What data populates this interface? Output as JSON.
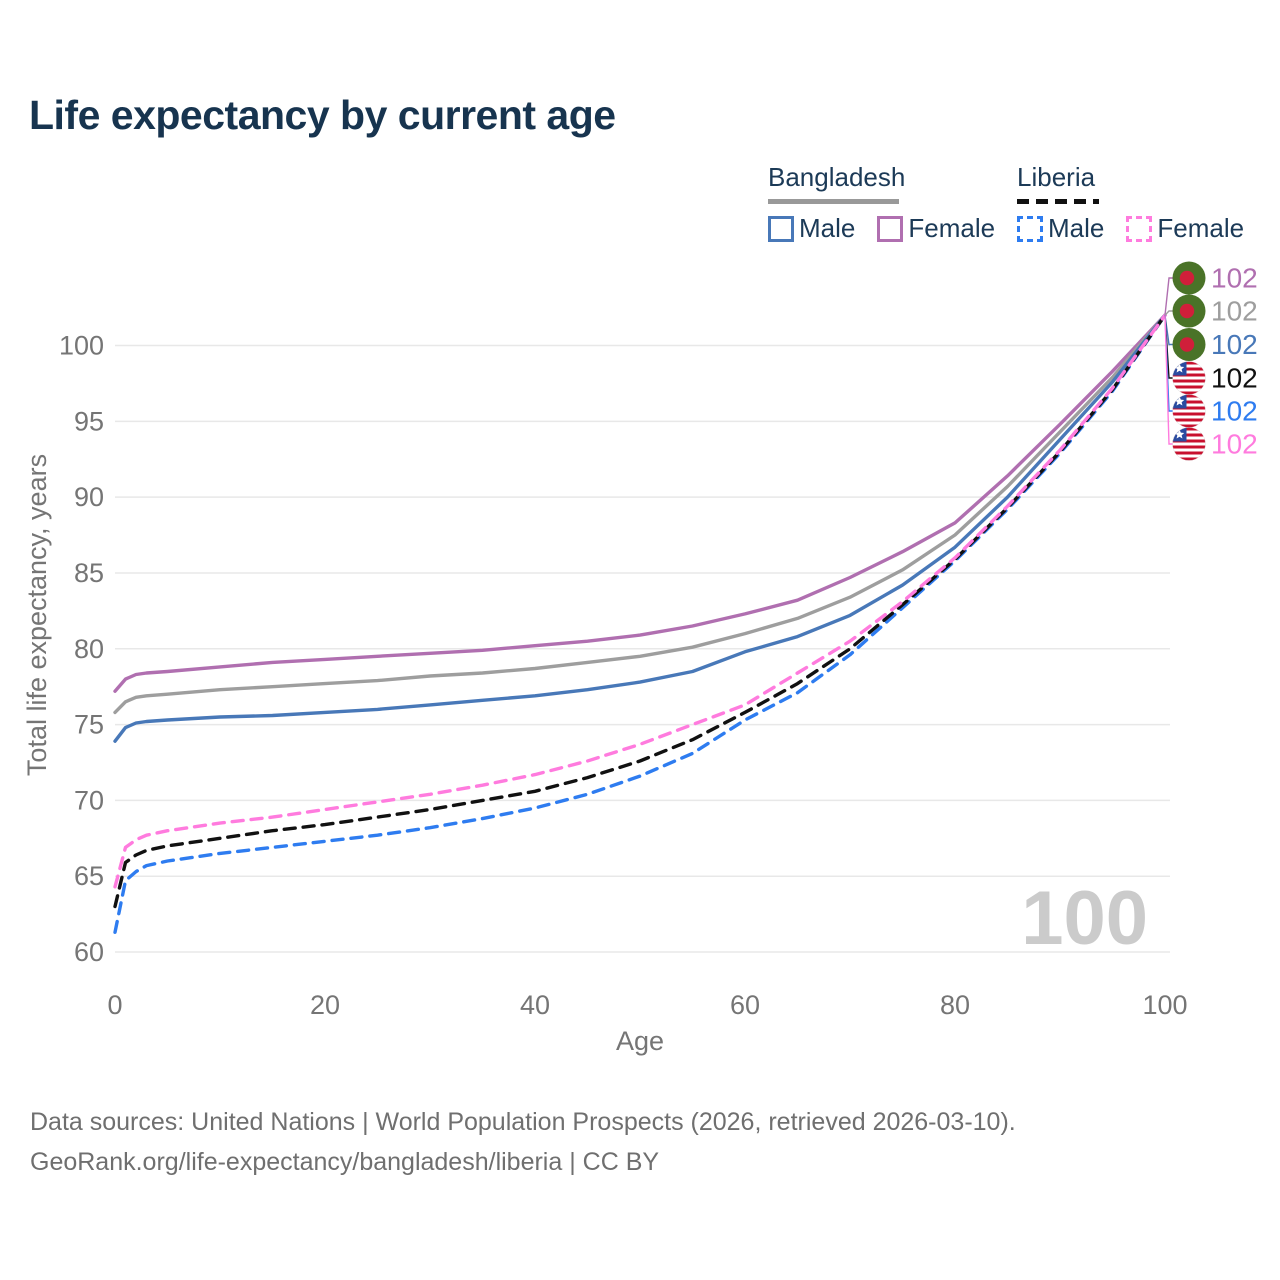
{
  "page": {
    "title": "Life expectancy by current age",
    "title_color": "#17344F",
    "background": "#ffffff"
  },
  "legend": {
    "text_color": "#1C3A57",
    "groups": [
      {
        "name": "Bangladesh",
        "underline_style": "solid",
        "underline_color": "#999999",
        "items": [
          {
            "label": "Male",
            "color": "#4878B8",
            "dashed": false
          },
          {
            "label": "Female",
            "color": "#B06FB0",
            "dashed": false
          }
        ]
      },
      {
        "name": "Liberia",
        "underline_style": "dashed",
        "underline_color": "#111111",
        "items": [
          {
            "label": "Male",
            "color": "#2E7CF0",
            "dashed": true
          },
          {
            "label": "Female",
            "color": "#FF7BDE",
            "dashed": true
          }
        ]
      }
    ]
  },
  "chart_data": {
    "type": "line",
    "title": "Life expectancy by current age",
    "xlabel": "Age",
    "ylabel": "Total life expectancy, years",
    "xlim": [
      0,
      100
    ],
    "ylim": [
      60,
      102.5
    ],
    "xticks": [
      0,
      20,
      40,
      60,
      80,
      100
    ],
    "yticks": [
      60,
      65,
      70,
      75,
      80,
      85,
      90,
      95,
      100
    ],
    "grid": "horizontal-only",
    "gridline_color": "#E8E8E8",
    "tick_color": "#757575",
    "watermark": "100",
    "watermark_color": "#CBCBCB",
    "legend_position": "top-right",
    "x": [
      0,
      1,
      2,
      3,
      5,
      10,
      15,
      20,
      25,
      30,
      35,
      40,
      45,
      50,
      55,
      60,
      65,
      70,
      75,
      80,
      85,
      90,
      95,
      100
    ],
    "series": [
      {
        "name": "Bangladesh Female",
        "country": "Bangladesh",
        "sex": "Female",
        "color": "#B06FB0",
        "dashed": false,
        "values": [
          77.2,
          78.0,
          78.3,
          78.4,
          78.5,
          78.8,
          79.1,
          79.3,
          79.5,
          79.7,
          79.9,
          80.2,
          80.5,
          80.9,
          81.5,
          82.3,
          83.2,
          84.7,
          86.4,
          88.3,
          91.4,
          94.8,
          98.3,
          102
        ]
      },
      {
        "name": "Bangladesh Both sexes",
        "country": "Bangladesh",
        "sex": "Both sexes",
        "color": "#9E9E9E",
        "dashed": false,
        "values": [
          75.8,
          76.5,
          76.8,
          76.9,
          77.0,
          77.3,
          77.5,
          77.7,
          77.9,
          78.2,
          78.4,
          78.7,
          79.1,
          79.5,
          80.1,
          81.0,
          82.0,
          83.4,
          85.2,
          87.5,
          90.7,
          94.3,
          97.9,
          102
        ]
      },
      {
        "name": "Bangladesh Male",
        "country": "Bangladesh",
        "sex": "Male",
        "color": "#4878B8",
        "dashed": false,
        "values": [
          73.9,
          74.8,
          75.1,
          75.2,
          75.3,
          75.5,
          75.6,
          75.8,
          76.0,
          76.3,
          76.6,
          76.9,
          77.3,
          77.8,
          78.5,
          79.8,
          80.8,
          82.2,
          84.2,
          86.7,
          90.0,
          93.8,
          97.6,
          102
        ]
      },
      {
        "name": "Liberia Male",
        "country": "Liberia",
        "sex": "Male",
        "color": "#2E7CF0",
        "dashed": true,
        "values": [
          61.3,
          64.7,
          65.3,
          65.7,
          66.0,
          66.5,
          66.9,
          67.3,
          67.7,
          68.2,
          68.8,
          69.5,
          70.4,
          71.6,
          73.1,
          75.3,
          77.1,
          79.6,
          82.7,
          85.8,
          89.2,
          92.9,
          97.0,
          102
        ]
      },
      {
        "name": "Liberia Both sexes",
        "country": "Liberia",
        "sex": "Both sexes",
        "color": "#111111",
        "dashed": true,
        "values": [
          63.0,
          65.9,
          66.4,
          66.7,
          67.0,
          67.5,
          68.0,
          68.4,
          68.9,
          69.4,
          70.0,
          70.6,
          71.5,
          72.6,
          74.0,
          75.8,
          77.7,
          80.0,
          82.9,
          85.9,
          89.3,
          93.0,
          97.1,
          102
        ]
      },
      {
        "name": "Liberia Female",
        "country": "Liberia",
        "sex": "Female",
        "color": "#FF7BDE",
        "dashed": true,
        "values": [
          64.3,
          66.9,
          67.4,
          67.7,
          68.0,
          68.5,
          68.9,
          69.4,
          69.9,
          70.4,
          71.0,
          71.7,
          72.6,
          73.7,
          75.0,
          76.3,
          78.4,
          80.5,
          83.1,
          86.0,
          89.4,
          93.1,
          97.2,
          102
        ]
      }
    ],
    "end_labels": [
      {
        "text": "102",
        "color": "#B06FB0",
        "flag": "bangladesh",
        "series": "Bangladesh Female"
      },
      {
        "text": "102",
        "color": "#9E9E9E",
        "flag": "bangladesh",
        "series": "Bangladesh Both sexes"
      },
      {
        "text": "102",
        "color": "#4878B8",
        "flag": "bangladesh",
        "series": "Bangladesh Male"
      },
      {
        "text": "102",
        "color": "#111111",
        "flag": "liberia",
        "series": "Liberia Both sexes"
      },
      {
        "text": "102",
        "color": "#2E7CF0",
        "flag": "liberia",
        "series": "Liberia Male"
      },
      {
        "text": "102",
        "color": "#FF7BDE",
        "flag": "liberia",
        "series": "Liberia Female"
      }
    ],
    "flag_colors": {
      "bangladesh_green": "#4A7328",
      "bangladesh_red": "#D01F3A",
      "liberia_red": "#C8102E",
      "liberia_white": "#FFFFFF",
      "liberia_blue": "#2A4BA0"
    }
  },
  "footer": {
    "line1": "Data sources: United Nations | World Population Prospects (2026, retrieved 2026-03-10).",
    "line2": "GeoRank.org/life-expectancy/bangladesh/liberia | CC BY"
  }
}
